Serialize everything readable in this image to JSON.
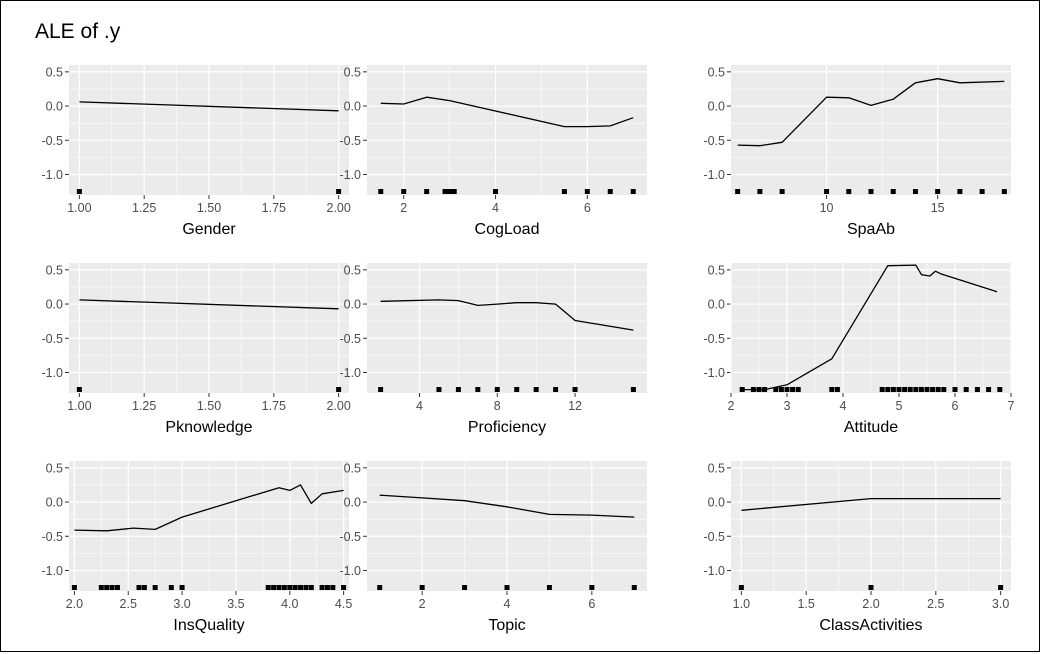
{
  "page_title": "ALE of .y",
  "colors": {
    "panel_bg": "#ebebeb",
    "grid_major": "#ffffff",
    "line": "#000000",
    "rug": "#000000",
    "tick_text": "#4d4d4d"
  },
  "chart_data": [
    {
      "type": "line",
      "xlabel": "Gender",
      "xlim": [
        0.96,
        2.04
      ],
      "ylim": [
        -1.3,
        0.6
      ],
      "xticks": [
        1.0,
        1.25,
        1.5,
        1.75,
        2.0
      ],
      "xtick_labels": [
        "1.00",
        "1.25",
        "1.50",
        "1.75",
        "2.00"
      ],
      "yticks": [
        0.5,
        0.0,
        -0.5,
        -1.0
      ],
      "ytick_labels": [
        "0.5",
        "0.0",
        "-0.5",
        "-1.0"
      ],
      "x": [
        1,
        2
      ],
      "y": [
        0.06,
        -0.07
      ],
      "rug": [
        1,
        2
      ]
    },
    {
      "type": "line",
      "xlabel": "CogLoad",
      "xlim": [
        1.2,
        7.3
      ],
      "ylim": [
        -1.3,
        0.6
      ],
      "xticks": [
        2,
        4,
        6
      ],
      "xtick_labels": [
        "2",
        "4",
        "6"
      ],
      "yticks": [
        0.5,
        0.0,
        -0.5,
        -1.0
      ],
      "ytick_labels": [
        "0.5",
        "0.0",
        "-0.5",
        "-1.0"
      ],
      "x": [
        1.5,
        2,
        2.5,
        3,
        5.5,
        6,
        6.5,
        7
      ],
      "y": [
        0.04,
        0.03,
        0.13,
        0.08,
        -0.3,
        -0.3,
        -0.29,
        -0.17
      ],
      "rug": [
        1.5,
        2,
        2.5,
        2.9,
        3,
        3.1,
        4,
        5.5,
        6,
        6.5,
        7
      ]
    },
    {
      "type": "line",
      "xlabel": "SpaAb",
      "xlim": [
        5.7,
        18.3
      ],
      "ylim": [
        -1.3,
        0.6
      ],
      "xticks": [
        10,
        15
      ],
      "xtick_labels": [
        "10",
        "15"
      ],
      "yticks": [
        0.5,
        0.0,
        -0.5,
        -1.0
      ],
      "ytick_labels": [
        "0.5",
        "0.0",
        "-0.5",
        "-1.0"
      ],
      "x": [
        6,
        7,
        8,
        10,
        11,
        12,
        13,
        14,
        15,
        16,
        18
      ],
      "y": [
        -0.57,
        -0.58,
        -0.53,
        0.13,
        0.12,
        0.01,
        0.1,
        0.34,
        0.4,
        0.34,
        0.36
      ],
      "rug": [
        6,
        7,
        8,
        10,
        11,
        12,
        13,
        14,
        15,
        16,
        17,
        18
      ]
    },
    {
      "type": "line",
      "xlabel": "Pknowledge",
      "xlim": [
        0.96,
        2.04
      ],
      "ylim": [
        -1.3,
        0.6
      ],
      "xticks": [
        1.0,
        1.25,
        1.5,
        1.75,
        2.0
      ],
      "xtick_labels": [
        "1.00",
        "1.25",
        "1.50",
        "1.75",
        "2.00"
      ],
      "yticks": [
        0.5,
        0.0,
        -0.5,
        -1.0
      ],
      "ytick_labels": [
        "0.5",
        "0.0",
        "-0.5",
        "-1.0"
      ],
      "x": [
        1,
        2
      ],
      "y": [
        0.06,
        -0.07
      ],
      "rug": [
        1,
        2
      ]
    },
    {
      "type": "line",
      "xlabel": "Proficiency",
      "xlim": [
        1.3,
        15.7
      ],
      "ylim": [
        -1.3,
        0.6
      ],
      "xticks": [
        4,
        8,
        12
      ],
      "xtick_labels": [
        "4",
        "8",
        "12"
      ],
      "yticks": [
        0.5,
        0.0,
        -0.5,
        -1.0
      ],
      "ytick_labels": [
        "0.5",
        "0.0",
        "-0.5",
        "-1.0"
      ],
      "x": [
        2,
        5,
        6,
        7,
        8,
        9,
        10,
        11,
        12,
        15
      ],
      "y": [
        0.04,
        0.06,
        0.05,
        -0.02,
        0.0,
        0.02,
        0.02,
        0.0,
        -0.24,
        -0.38
      ],
      "rug": [
        2,
        5,
        6,
        7,
        8,
        9,
        10,
        11,
        12,
        15
      ]
    },
    {
      "type": "line",
      "xlabel": "Attitude",
      "xlim": [
        2.0,
        7.0
      ],
      "ylim": [
        -1.3,
        0.6
      ],
      "xticks": [
        2,
        3,
        4,
        5,
        6,
        7
      ],
      "xtick_labels": [
        "2",
        "3",
        "4",
        "5",
        "6",
        "7"
      ],
      "yticks": [
        0.5,
        0.0,
        -0.5,
        -1.0
      ],
      "ytick_labels": [
        "0.5",
        "0.0",
        "-0.5",
        "-1.0"
      ],
      "x": [
        2.2,
        2.6,
        3.0,
        3.8,
        4.8,
        5.3,
        5.4,
        5.55,
        5.65,
        5.75,
        6.75
      ],
      "y": [
        -1.25,
        -1.25,
        -1.18,
        -0.8,
        0.56,
        0.57,
        0.43,
        0.41,
        0.48,
        0.44,
        0.18
      ],
      "rug": [
        2.2,
        2.4,
        2.5,
        2.6,
        2.8,
        2.9,
        3.0,
        3.1,
        3.2,
        3.8,
        3.9,
        4.7,
        4.8,
        4.9,
        5.0,
        5.1,
        5.2,
        5.3,
        5.4,
        5.5,
        5.6,
        5.7,
        5.8,
        6.0,
        6.2,
        6.4,
        6.6,
        6.8
      ]
    },
    {
      "type": "line",
      "xlabel": "InsQuality",
      "xlim": [
        1.95,
        4.55
      ],
      "ylim": [
        -1.3,
        0.6
      ],
      "xticks": [
        2.0,
        2.5,
        3.0,
        3.5,
        4.0,
        4.5
      ],
      "xtick_labels": [
        "2.0",
        "2.5",
        "3.0",
        "3.5",
        "4.0",
        "4.5"
      ],
      "yticks": [
        0.5,
        0.0,
        -0.5,
        -1.0
      ],
      "ytick_labels": [
        "0.5",
        "0.0",
        "-0.5",
        "-1.0"
      ],
      "x": [
        2.0,
        2.3,
        2.55,
        2.75,
        3.0,
        3.9,
        4.0,
        4.1,
        4.2,
        4.3,
        4.5
      ],
      "y": [
        -0.41,
        -0.42,
        -0.38,
        -0.4,
        -0.22,
        0.21,
        0.17,
        0.25,
        -0.02,
        0.12,
        0.17
      ],
      "rug": [
        2.0,
        2.25,
        2.3,
        2.35,
        2.4,
        2.6,
        2.65,
        2.75,
        2.9,
        3.0,
        3.8,
        3.85,
        3.9,
        3.95,
        4.0,
        4.05,
        4.1,
        4.15,
        4.2,
        4.3,
        4.35,
        4.4,
        4.5
      ]
    },
    {
      "type": "line",
      "xlabel": "Topic",
      "xlim": [
        0.7,
        7.3
      ],
      "ylim": [
        -1.3,
        0.6
      ],
      "xticks": [
        2,
        4,
        6
      ],
      "xtick_labels": [
        "2",
        "4",
        "6"
      ],
      "yticks": [
        0.5,
        0.0,
        -0.5,
        -1.0
      ],
      "ytick_labels": [
        "0.5",
        "0.0",
        "-0.5",
        "-1.0"
      ],
      "x": [
        1,
        2,
        3,
        4,
        5,
        6,
        7
      ],
      "y": [
        0.1,
        0.06,
        0.02,
        -0.07,
        -0.18,
        -0.19,
        -0.22
      ],
      "rug": [
        1,
        2,
        3,
        4,
        5,
        6,
        7
      ]
    },
    {
      "type": "line",
      "xlabel": "ClassActivities",
      "xlim": [
        0.92,
        3.08
      ],
      "ylim": [
        -1.3,
        0.6
      ],
      "xticks": [
        1.0,
        1.5,
        2.0,
        2.5,
        3.0
      ],
      "xtick_labels": [
        "1.0",
        "1.5",
        "2.0",
        "2.5",
        "3.0"
      ],
      "yticks": [
        0.5,
        0.0,
        -0.5,
        -1.0
      ],
      "ytick_labels": [
        "0.5",
        "0.0",
        "-0.5",
        "-1.0"
      ],
      "x": [
        1,
        2,
        3
      ],
      "y": [
        -0.12,
        0.05,
        0.05
      ],
      "rug": [
        1,
        2,
        3
      ]
    }
  ]
}
